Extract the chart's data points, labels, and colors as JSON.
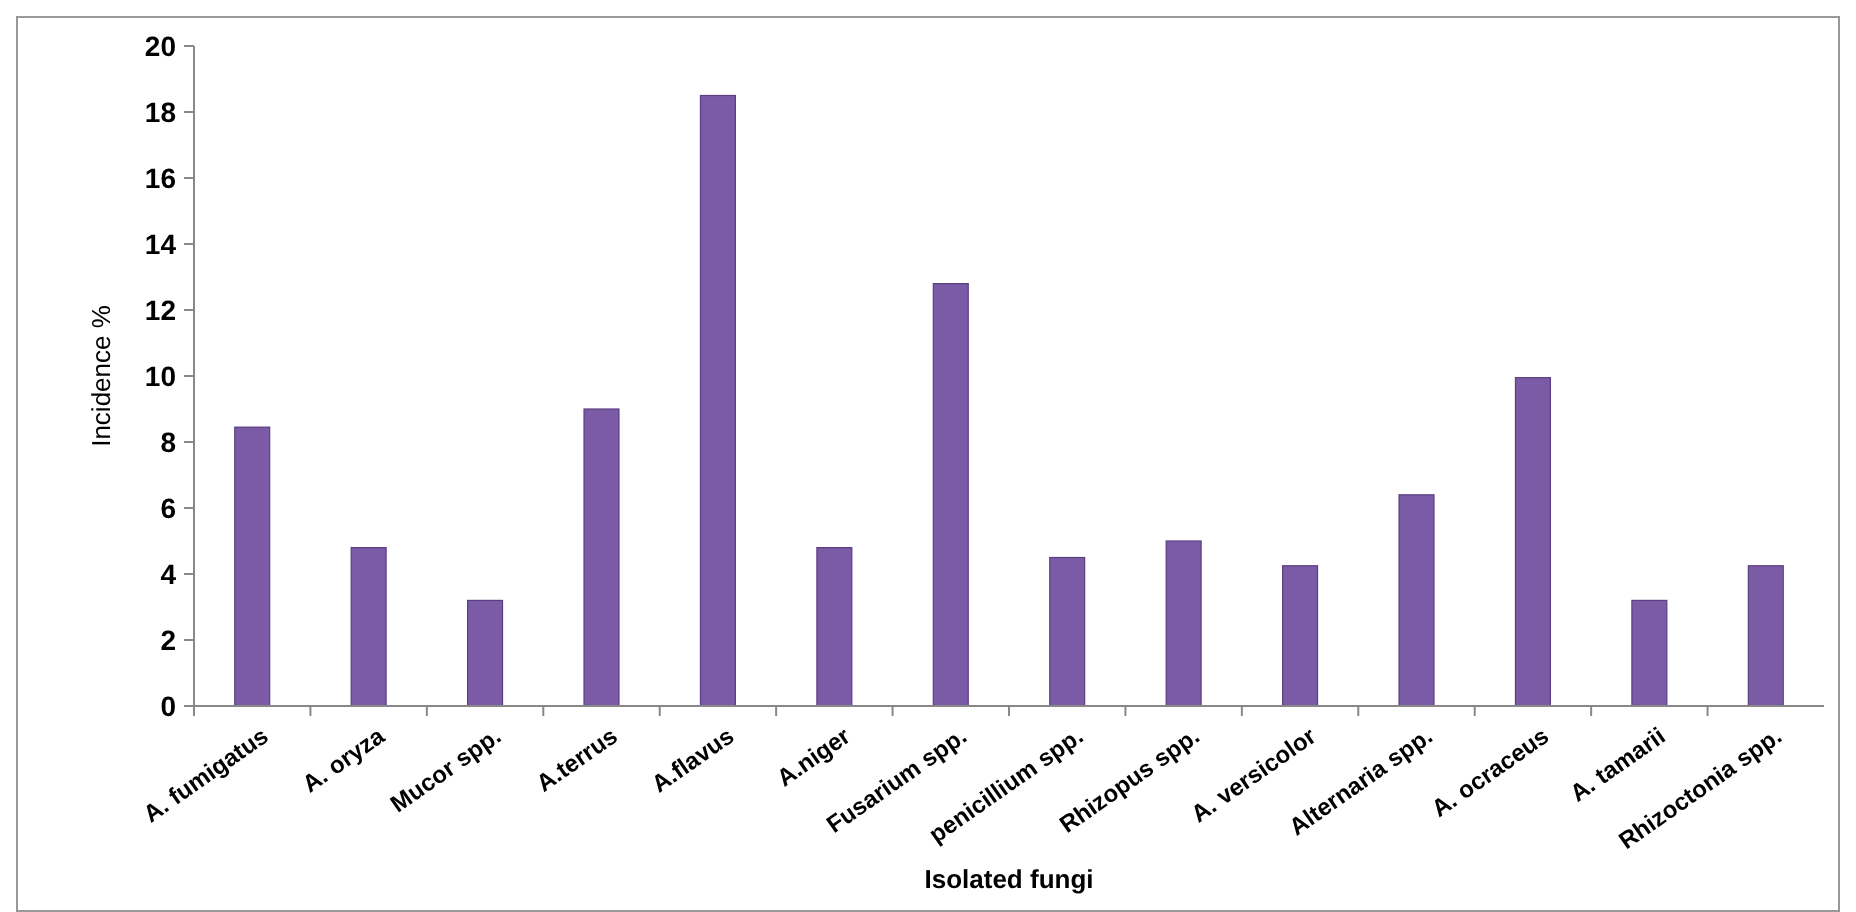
{
  "chart_data": {
    "type": "bar",
    "xlabel": "Isolated fungi",
    "ylabel": "Incidence %",
    "categories": [
      "A. fumigatus",
      "A. oryza",
      "Mucor spp.",
      "A.terrus",
      "A.flavus",
      "A.niger",
      "Fusarium spp.",
      "penicillium spp.",
      "Rhizopus spp.",
      "A. versicolor",
      "Alternaria spp.",
      "A. ocraceus",
      "A. tamarii",
      "Rhizoctonia spp."
    ],
    "values": [
      8.45,
      4.8,
      3.2,
      9.0,
      18.5,
      4.8,
      12.8,
      4.5,
      5.0,
      4.25,
      6.4,
      9.95,
      3.2,
      4.25
    ],
    "color": "#7b5aa6",
    "ylim": [
      0,
      20
    ],
    "yticks": [
      0,
      2,
      4,
      6,
      8,
      10,
      12,
      14,
      16,
      18,
      20
    ],
    "grid": false
  }
}
